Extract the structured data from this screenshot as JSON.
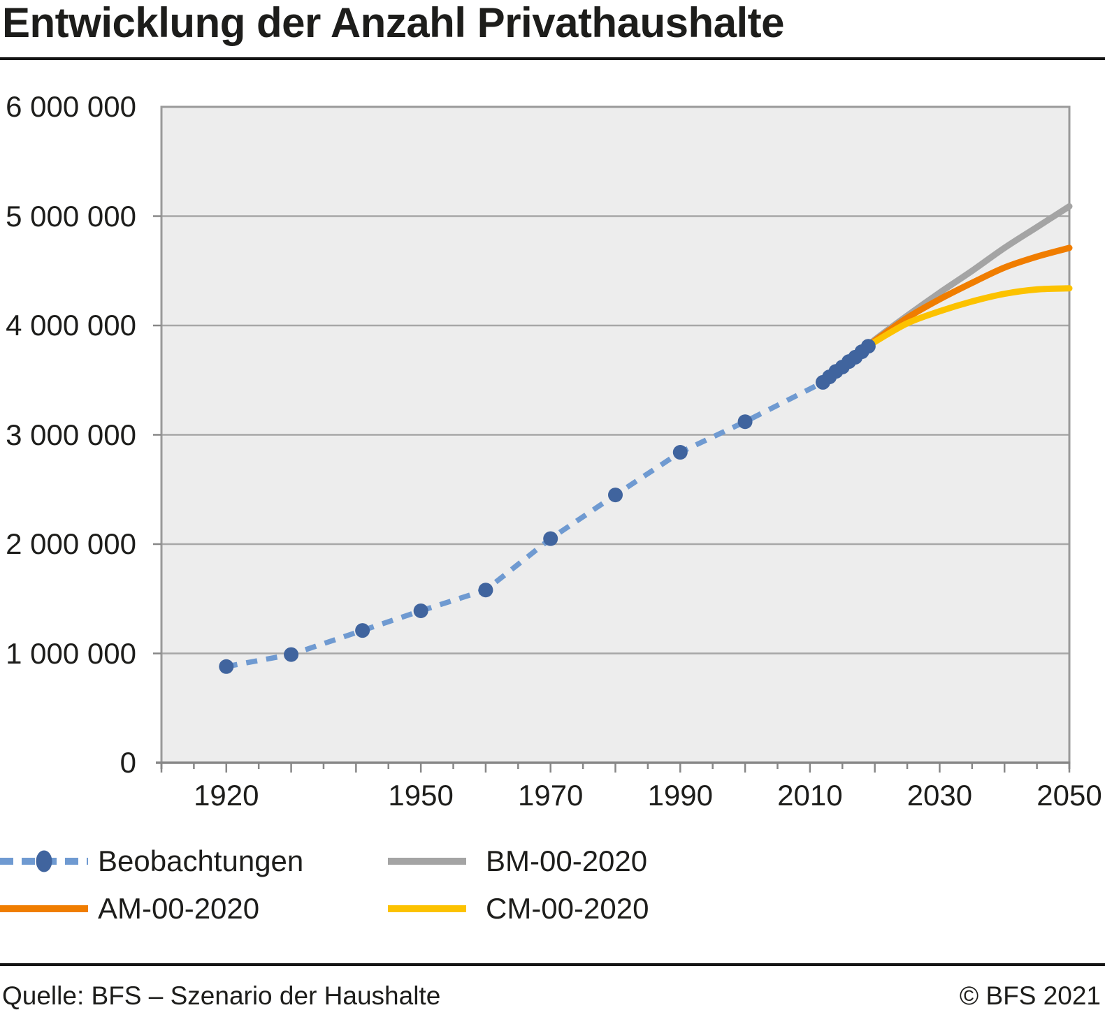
{
  "header": {
    "title": "Entwicklung der Anzahl Privathaushalte"
  },
  "footer": {
    "source": "Quelle: BFS – Szenario der Haushalte",
    "copyright": "© BFS 2021"
  },
  "colors": {
    "observation_dash": "#6f9ad1",
    "observation_marker": "#40649e",
    "scenario_bm": "#a4a4a4",
    "scenario_am": "#f07d00",
    "scenario_cm": "#fcc200",
    "plot_background": "#ededed",
    "gridline": "#a7a7a7",
    "frame": "#9a9a9a",
    "axis": "#878787",
    "text": "#1d1d1b",
    "rule": "#141414"
  },
  "chart_data": {
    "type": "line",
    "title": "Entwicklung der Anzahl Privathaushalte",
    "xlabel": "",
    "ylabel": "",
    "grid": "horizontal-only",
    "x_axis": {
      "min": 1910,
      "max": 2050,
      "labeled_ticks": [
        "1920",
        "1950",
        "1970",
        "1990",
        "2010",
        "2030",
        "2050"
      ],
      "labeled_tick_years": [
        1920,
        1950,
        1970,
        1990,
        2010,
        2030,
        2050
      ],
      "minor_tick_step": 5,
      "major_tick_step": 10
    },
    "y_axis": {
      "min": 0,
      "max": 6000000,
      "grid_step": 1000000,
      "labels_top_to_bottom": [
        "6 000 000",
        "5 000 000",
        "4 000 000",
        "3 000 000",
        "2 000 000",
        "1 000 000",
        "0"
      ]
    },
    "legend": {
      "position": "bottom",
      "entries": [
        "Beobachtungen",
        "BM-00-2020",
        "AM-00-2020",
        "CM-00-2020"
      ]
    },
    "series": [
      {
        "name": "Beobachtungen",
        "style": "dashed_with_markers",
        "line_color": "#6f9ad1",
        "marker_color": "#40649e",
        "points": [
          [
            1920,
            880000
          ],
          [
            1930,
            990000
          ],
          [
            1941,
            1210000
          ],
          [
            1950,
            1390000
          ],
          [
            1960,
            1580000
          ],
          [
            1970,
            2050000
          ],
          [
            1980,
            2450000
          ],
          [
            1990,
            2840000
          ],
          [
            2000,
            3120000
          ],
          [
            2012,
            3480000
          ],
          [
            2013,
            3530000
          ],
          [
            2014,
            3580000
          ],
          [
            2015,
            3620000
          ],
          [
            2016,
            3670000
          ],
          [
            2017,
            3710000
          ],
          [
            2018,
            3760000
          ],
          [
            2019,
            3810000
          ]
        ]
      },
      {
        "name": "BM-00-2020",
        "style": "solid",
        "line_color": "#a4a4a4",
        "points": [
          [
            2019,
            3810000
          ],
          [
            2020,
            3870000
          ],
          [
            2025,
            4090000
          ],
          [
            2030,
            4300000
          ],
          [
            2035,
            4500000
          ],
          [
            2040,
            4710000
          ],
          [
            2045,
            4900000
          ],
          [
            2050,
            5090000
          ]
        ]
      },
      {
        "name": "AM-00-2020",
        "style": "solid",
        "line_color": "#f07d00",
        "points": [
          [
            2019,
            3810000
          ],
          [
            2020,
            3860000
          ],
          [
            2025,
            4070000
          ],
          [
            2030,
            4240000
          ],
          [
            2035,
            4390000
          ],
          [
            2040,
            4530000
          ],
          [
            2045,
            4630000
          ],
          [
            2050,
            4710000
          ]
        ]
      },
      {
        "name": "CM-00-2020",
        "style": "solid",
        "line_color": "#fcc200",
        "points": [
          [
            2019,
            3810000
          ],
          [
            2020,
            3850000
          ],
          [
            2025,
            4020000
          ],
          [
            2030,
            4130000
          ],
          [
            2035,
            4220000
          ],
          [
            2040,
            4290000
          ],
          [
            2045,
            4330000
          ],
          [
            2050,
            4340000
          ]
        ]
      }
    ]
  },
  "legend": {
    "items": [
      {
        "label": "Beobachtungen",
        "series": "Beobachtungen",
        "swatch": "dashed_with_marker"
      },
      {
        "label": "BM-00-2020",
        "series": "BM-00-2020",
        "swatch": "solid"
      },
      {
        "label": "AM-00-2020",
        "series": "AM-00-2020",
        "swatch": "solid"
      },
      {
        "label": "CM-00-2020",
        "series": "CM-00-2020",
        "swatch": "solid"
      }
    ]
  }
}
